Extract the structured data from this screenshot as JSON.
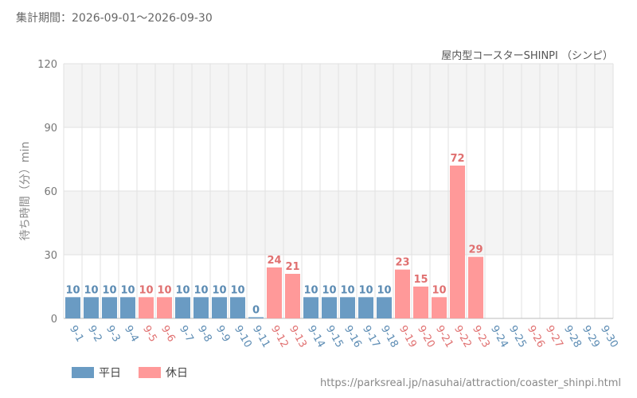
{
  "header": {
    "period_label": "集計期間：2026-09-01～2026-09-30",
    "attraction_name": "屋内型コースターSHINPI （シンピ）"
  },
  "footer": {
    "source_url": "https://parksreal.jp/nasuhai/attraction/coaster_shinpi.html"
  },
  "colors": {
    "weekday": "#6a9bc3",
    "holiday": "#ff9999",
    "weekday_label": "#5b8bb3",
    "holiday_label": "#e07070",
    "band": "#f4f4f4",
    "grid": "#e2e2e2"
  },
  "chart_data": {
    "type": "bar",
    "ylabel": "待ち時間（分）min",
    "ylim": [
      0,
      120
    ],
    "yticks": [
      0,
      30,
      60,
      90,
      120
    ],
    "grid": true,
    "legend_position": "bottom-left",
    "categories": [
      "9-1",
      "9-2",
      "9-3",
      "9-4",
      "9-5",
      "9-6",
      "9-7",
      "9-8",
      "9-9",
      "9-10",
      "9-11",
      "9-12",
      "9-13",
      "9-14",
      "9-15",
      "9-16",
      "9-17",
      "9-18",
      "9-19",
      "9-20",
      "9-21",
      "9-22",
      "9-23",
      "9-24",
      "9-25",
      "9-26",
      "9-27",
      "9-28",
      "9-29",
      "9-30"
    ],
    "values": [
      10,
      10,
      10,
      10,
      10,
      10,
      10,
      10,
      10,
      10,
      0,
      24,
      21,
      10,
      10,
      10,
      10,
      10,
      23,
      15,
      10,
      72,
      29,
      null,
      null,
      null,
      null,
      null,
      null,
      null
    ],
    "day_type": [
      "平日",
      "平日",
      "平日",
      "平日",
      "休日",
      "休日",
      "平日",
      "平日",
      "平日",
      "平日",
      "平日",
      "休日",
      "休日",
      "平日",
      "平日",
      "平日",
      "平日",
      "平日",
      "休日",
      "休日",
      "休日",
      "休日",
      "休日",
      "平日",
      "平日",
      "休日",
      "休日",
      "平日",
      "平日",
      "平日"
    ],
    "series": [
      {
        "name": "平日"
      },
      {
        "name": "休日"
      }
    ]
  }
}
